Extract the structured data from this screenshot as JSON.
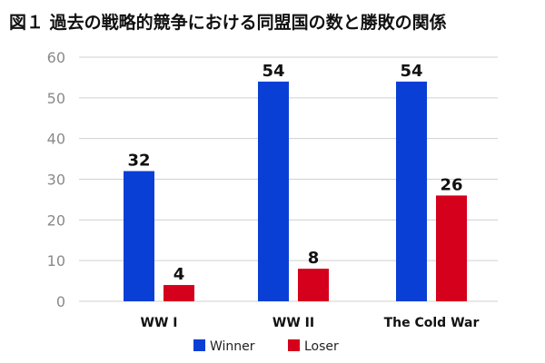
{
  "chart_data": {
    "type": "bar",
    "title": "図１ 過去の戦略的競争における同盟国の数と勝敗の関係",
    "categories": [
      "WW I",
      "WW II",
      "The Cold War"
    ],
    "series": [
      {
        "name": "Winner",
        "color": "#0a3fd6",
        "values": [
          32,
          54,
          54
        ]
      },
      {
        "name": "Loser",
        "color": "#d4001c",
        "values": [
          4,
          8,
          26
        ]
      }
    ],
    "yticks": [
      0,
      10,
      20,
      30,
      40,
      50,
      60
    ],
    "ylim": [
      0,
      60
    ],
    "grid": true,
    "legend_position": "bottom",
    "data_labels": true
  }
}
